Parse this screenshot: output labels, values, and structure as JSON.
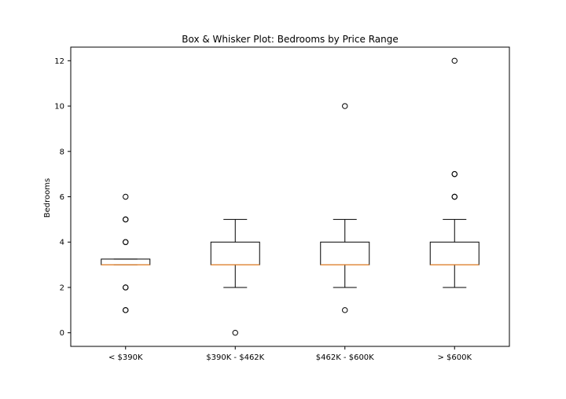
{
  "chart_data": {
    "type": "box",
    "title": "Box & Whisker Plot: Bedrooms by Price Range",
    "xlabel": "",
    "ylabel": "Bedrooms",
    "ylim": [
      -0.6,
      12.6
    ],
    "yticks": [
      0,
      2,
      4,
      6,
      8,
      10,
      12
    ],
    "grid": false,
    "categories": [
      "< $390K",
      "$390K - $462K",
      "$462K - $600K",
      "> $600K"
    ],
    "boxes": [
      {
        "whisker_low": 3,
        "q1": 3,
        "median": 3,
        "q3": 3.25,
        "whisker_high": 3.25,
        "outliers": [
          6,
          5,
          5,
          4,
          4,
          2,
          2,
          1,
          1
        ]
      },
      {
        "whisker_low": 2,
        "q1": 3,
        "median": 3,
        "q3": 4,
        "whisker_high": 5,
        "outliers": [
          0
        ]
      },
      {
        "whisker_low": 2,
        "q1": 3,
        "median": 3,
        "q3": 4,
        "whisker_high": 5,
        "outliers": [
          10,
          1
        ]
      },
      {
        "whisker_low": 2,
        "q1": 3,
        "median": 3,
        "q3": 4,
        "whisker_high": 5,
        "outliers": [
          12,
          7,
          7,
          6,
          6
        ]
      }
    ],
    "colors": {
      "box": "#000000",
      "median": "#ff7f0e",
      "flier": "#000000"
    }
  }
}
